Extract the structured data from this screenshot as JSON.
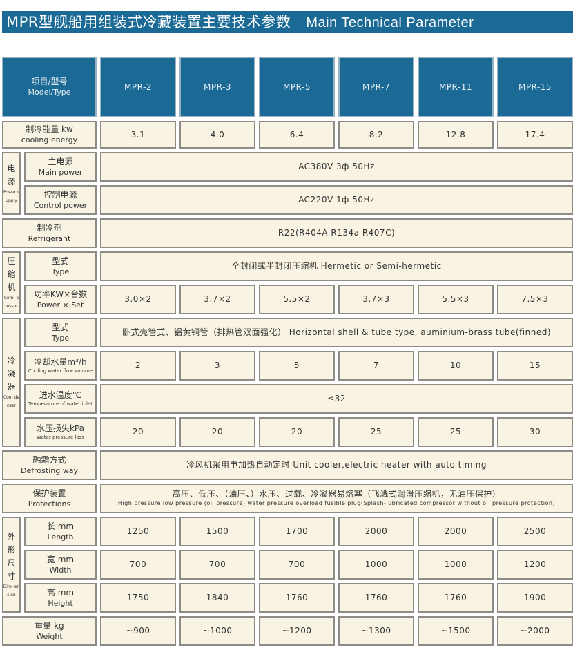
{
  "title": {
    "cn": "MPR型舰船用组装式冷藏装置主要技术参数",
    "en": "Main Technical Parameter"
  },
  "colors": {
    "header_blue": "#1b6a96",
    "cell_cream": "#f8f3e2",
    "border_gray": "#8d8c86"
  },
  "header": {
    "cn": "项目/型号",
    "en": "Model/Type",
    "models": [
      "MPR-2",
      "MPR-3",
      "MPR-5",
      "MPR-7",
      "MPR-11",
      "MPR-15"
    ]
  },
  "groups": {
    "power_supply": {
      "cn": "电源",
      "en": "Power supply"
    },
    "compressor": {
      "cn": "压缩机",
      "en": "Com- pressor"
    },
    "condenser": {
      "cn": "冷凝器",
      "en": "Con- denser"
    },
    "dimension": {
      "cn": "外形尺寸",
      "en": "Dim- ension"
    }
  },
  "rows": {
    "cooling_energy": {
      "cn": "制冷能量 kw",
      "en": "cooling energy",
      "values": [
        "3.1",
        "4.0",
        "6.4",
        "8.2",
        "12.8",
        "17.4"
      ]
    },
    "main_power": {
      "cn": "主电源",
      "en": "Main power",
      "value": "AC380V 3ф 50Hz"
    },
    "control_power": {
      "cn": "控制电源",
      "en": "Control power",
      "value": "AC220V 1ф 50Hz"
    },
    "refrigerant": {
      "cn": "制冷剂",
      "en": "Refrigerant",
      "value": "R22(R404A R134a R407C)"
    },
    "compressor_type": {
      "cn": "型式",
      "en": "Type",
      "value": "全封闭或半封闭压缩机   Hermetic or Semi-hermetic"
    },
    "power_set": {
      "cn": "功率KW×台数",
      "en": "Power × Set",
      "values": [
        "3.0×2",
        "3.7×2",
        "5.5×2",
        "3.7×3",
        "5.5×3",
        "7.5×3"
      ]
    },
    "condenser_type": {
      "cn": "型式",
      "en": "Type",
      "value": "卧式壳管式、铝黄铜管（排热管双面强化） Horizontal shell & tube type, auminium-brass tube(finned)"
    },
    "cooling_water": {
      "cn": "冷却水量m³/h",
      "en": "Cooling water flow volume",
      "values": [
        "2",
        "3",
        "5",
        "7",
        "10",
        "15"
      ]
    },
    "water_inlet_temp": {
      "cn": "进水温度℃",
      "en": "Temperature of water inlet",
      "value": "≤32"
    },
    "water_pressure_loss": {
      "cn": "水压损失kPa",
      "en": "Water pressure loss",
      "values": [
        "20",
        "20",
        "20",
        "25",
        "25",
        "30"
      ]
    },
    "defrosting": {
      "cn": "融霜方式",
      "en": "Defrosting way",
      "value": "冷风机采用电加热自动定时 Unit cooler,electric heater with auto timing"
    },
    "protections": {
      "cn": "保护装置",
      "en": "Protections",
      "value_cn": "高压、低压、（油压、）水压、过载、冷凝器易熔塞（飞溅式润滑压缩机，无油压保护）",
      "value_en": "High pressure  low pressure  (oil pressure)  water pressure  overload  fusible plug(Splash-lubricated compressor without oil pressure protection)"
    },
    "length": {
      "cn": "长 mm",
      "en": "Length",
      "values": [
        "1250",
        "1500",
        "1700",
        "2000",
        "2000",
        "2500"
      ]
    },
    "width": {
      "cn": "宽 mm",
      "en": "Width",
      "values": [
        "700",
        "700",
        "700",
        "1000",
        "1000",
        "1200"
      ]
    },
    "height": {
      "cn": "高 mm",
      "en": "Height",
      "values": [
        "1750",
        "1840",
        "1760",
        "1760",
        "1760",
        "1900"
      ]
    },
    "weight": {
      "cn": "重量 kg",
      "en": "Weight",
      "values": [
        "~900",
        "~1000",
        "~1200",
        "~1300",
        "~1500",
        "~2000"
      ]
    }
  }
}
